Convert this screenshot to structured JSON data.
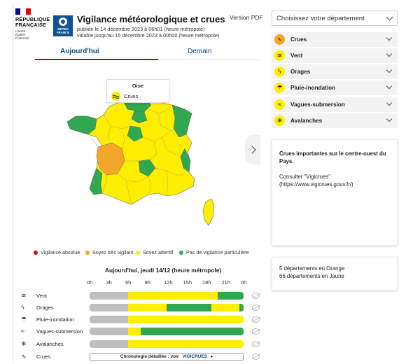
{
  "header": {
    "republic_title_line1": "RÉPUBLIQUE",
    "republic_title_line2": "FRANÇAISE",
    "motto_line1": "Liberté",
    "motto_line2": "Égalité",
    "motto_line3": "Fraternité",
    "meteo_logo_line1": "MÉTÉO",
    "meteo_logo_line2": "FRANCE",
    "title": "Vigilance météorologique et crues",
    "published": "publiée le 14 décembre 2023 à 06h01 (heure métropole)",
    "valid_until": "valable jusqu'au 15 décembre 2023 à 00h00 (heure métropole)",
    "version_pdf": "Version PDF",
    "department_select": "Choisissez votre département"
  },
  "tabs": [
    {
      "label": "Aujourd'hui",
      "active": true
    },
    {
      "label": "Demain",
      "active": false
    }
  ],
  "map_tooltip": {
    "department": "Oise",
    "risk": "Crues",
    "level_color": "#ffee00"
  },
  "legend": [
    {
      "label": "Vigilance absolue",
      "color": "#d9001a"
    },
    {
      "label": "Soyez très vigilant",
      "color": "#f4a62a"
    },
    {
      "label": "Soyez attentif",
      "color": "#ffee00"
    },
    {
      "label": "Pas de vigilance particulière",
      "color": "#2fa84f"
    }
  ],
  "timeline": {
    "title": "Aujourd'hui, jeudi 14/12 (heure métropole)",
    "hours": [
      "0h",
      "3h",
      "6h",
      "9h",
      "12h",
      "15h",
      "18h",
      "21h",
      "0h"
    ],
    "rows": [
      {
        "label": "Vent",
        "icon": "wind-icon",
        "segments": [
          [
            "gray",
            3
          ],
          [
            "yellow",
            7
          ],
          [
            "green",
            2
          ]
        ]
      },
      {
        "label": "Orages",
        "icon": "lightning-icon",
        "segments": [
          [
            "gray",
            3
          ],
          [
            "yellow",
            3
          ],
          [
            "green",
            3.5
          ],
          [
            "yellow",
            2.2
          ],
          [
            "green",
            0.3
          ]
        ]
      },
      {
        "label": "Pluie-inondation",
        "icon": "rain-flood-icon",
        "segments": [
          [
            "gray",
            3
          ],
          [
            "yellow",
            9
          ]
        ]
      },
      {
        "label": "Vagues-submersion",
        "icon": "waves-icon",
        "segments": [
          [
            "gray",
            3
          ],
          [
            "yellow",
            1
          ],
          [
            "green",
            8
          ]
        ]
      },
      {
        "label": "Avalanches",
        "icon": "avalanche-icon",
        "segments": [
          [
            "gray",
            3
          ],
          [
            "yellow",
            9
          ]
        ]
      },
      {
        "label": "Crues",
        "icon": "flood-icon",
        "segments": []
      }
    ],
    "chronology_button": "Chronologie détaillée : voir",
    "vigicrues_logo": "VIGICRUES"
  },
  "risks": [
    {
      "label": "Crues",
      "icon": "flood-icon",
      "color": "#f4a62a"
    },
    {
      "label": "Vent",
      "icon": "wind-icon",
      "color": "#ffee00"
    },
    {
      "label": "Orages",
      "icon": "lightning-icon",
      "color": "#ffee00"
    },
    {
      "label": "Pluie-inondation",
      "icon": "rain-flood-icon",
      "color": "#ffee00"
    },
    {
      "label": "Vagues-submersion",
      "icon": "waves-icon",
      "color": "#ffee00"
    },
    {
      "label": "Avalanches",
      "icon": "avalanche-icon",
      "color": "#ffee00"
    }
  ],
  "info": {
    "bulletin": "Crues importantes sur le centre-ouest du Pays.",
    "consult_line1": "Consulter \"Vigicrues\"",
    "consult_line2": "(https://www.vigicrues.gouv.fr/)"
  },
  "summary": {
    "orange_count": "5 départements en Orange",
    "yellow_count": "66 départements en Jaune"
  },
  "colors": {
    "yellow": "#ffee00",
    "orange": "#f4a62a",
    "green": "#2fa84f",
    "gray": "#bfbfbf",
    "brand_blue": "#0b4a87"
  }
}
